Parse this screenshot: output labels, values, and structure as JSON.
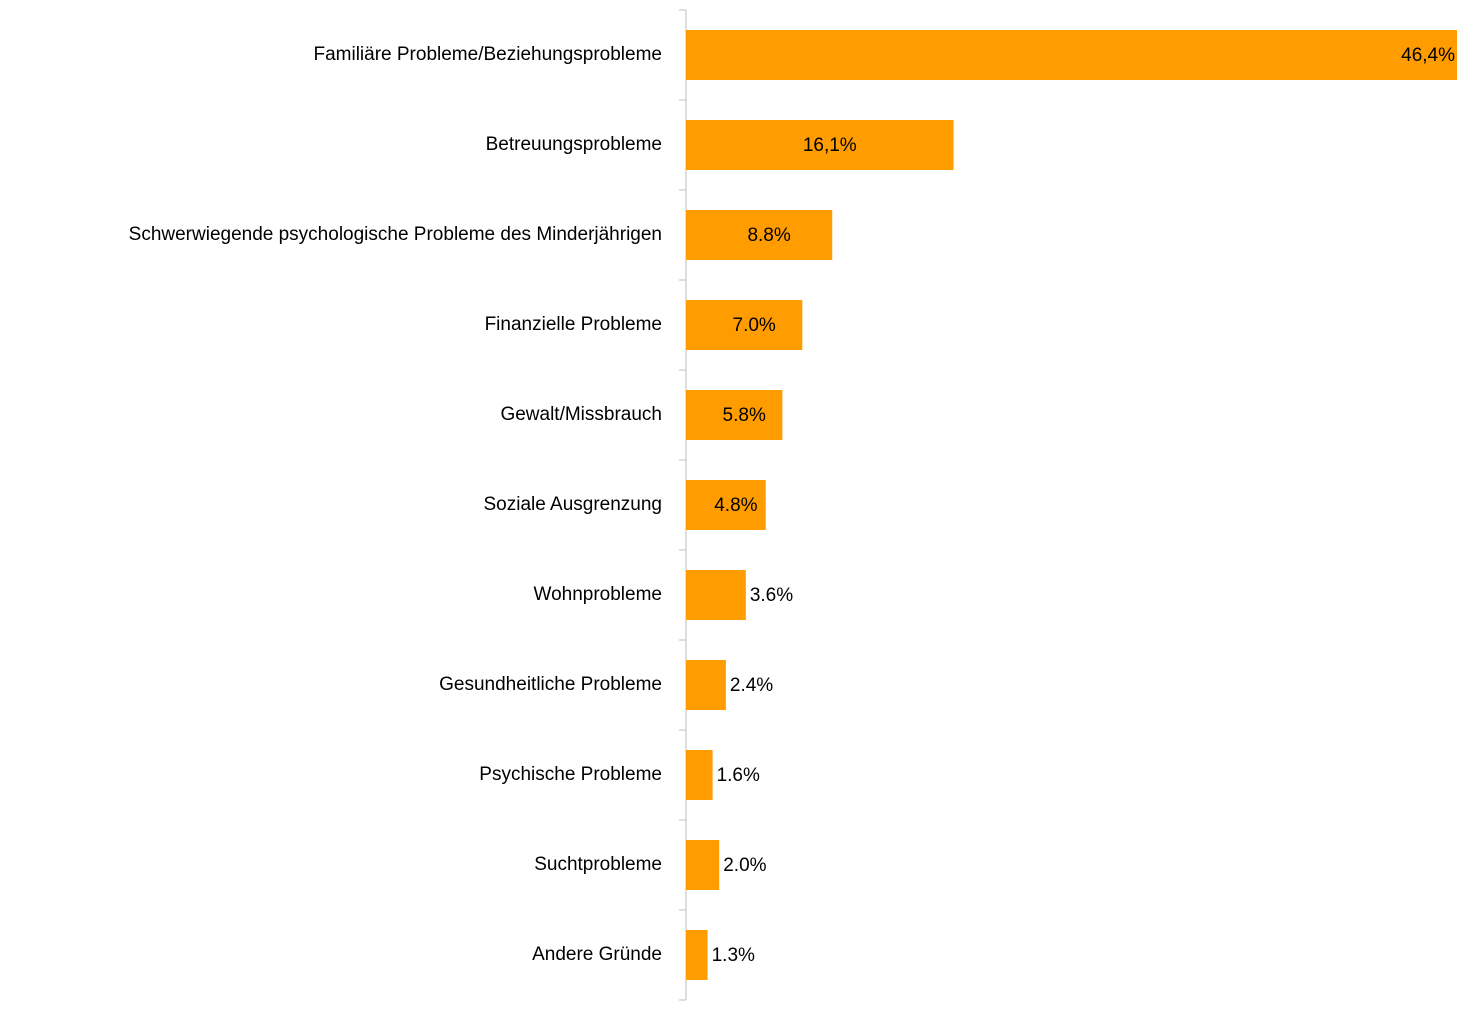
{
  "chart_data": {
    "type": "bar",
    "orientation": "horizontal",
    "categories": [
      "Familiäre Probleme/Beziehungsprobleme",
      "Betreuungsprobleme",
      "Schwerwiegende psychologische Probleme des Minderjährigen",
      "Finanzielle Probleme",
      "Gewalt/Missbrauch",
      "Soziale Ausgrenzung",
      "Wohnprobleme",
      "Gesundheitliche Probleme",
      "Psychische Probleme",
      "Suchtprobleme",
      "Andere Gründe"
    ],
    "values": [
      46.4,
      16.1,
      8.8,
      7.0,
      5.8,
      4.8,
      3.6,
      2.4,
      1.6,
      2.0,
      1.3
    ],
    "value_labels": [
      "46,4%",
      "16,1%",
      "8.8%",
      "7.0%",
      "5.8%",
      "4.8%",
      "3.6%",
      "2.4%",
      "1.6%",
      "2.0%",
      "1.3%"
    ],
    "color": "#ff9c00",
    "xlim": [
      0,
      46.4
    ]
  }
}
